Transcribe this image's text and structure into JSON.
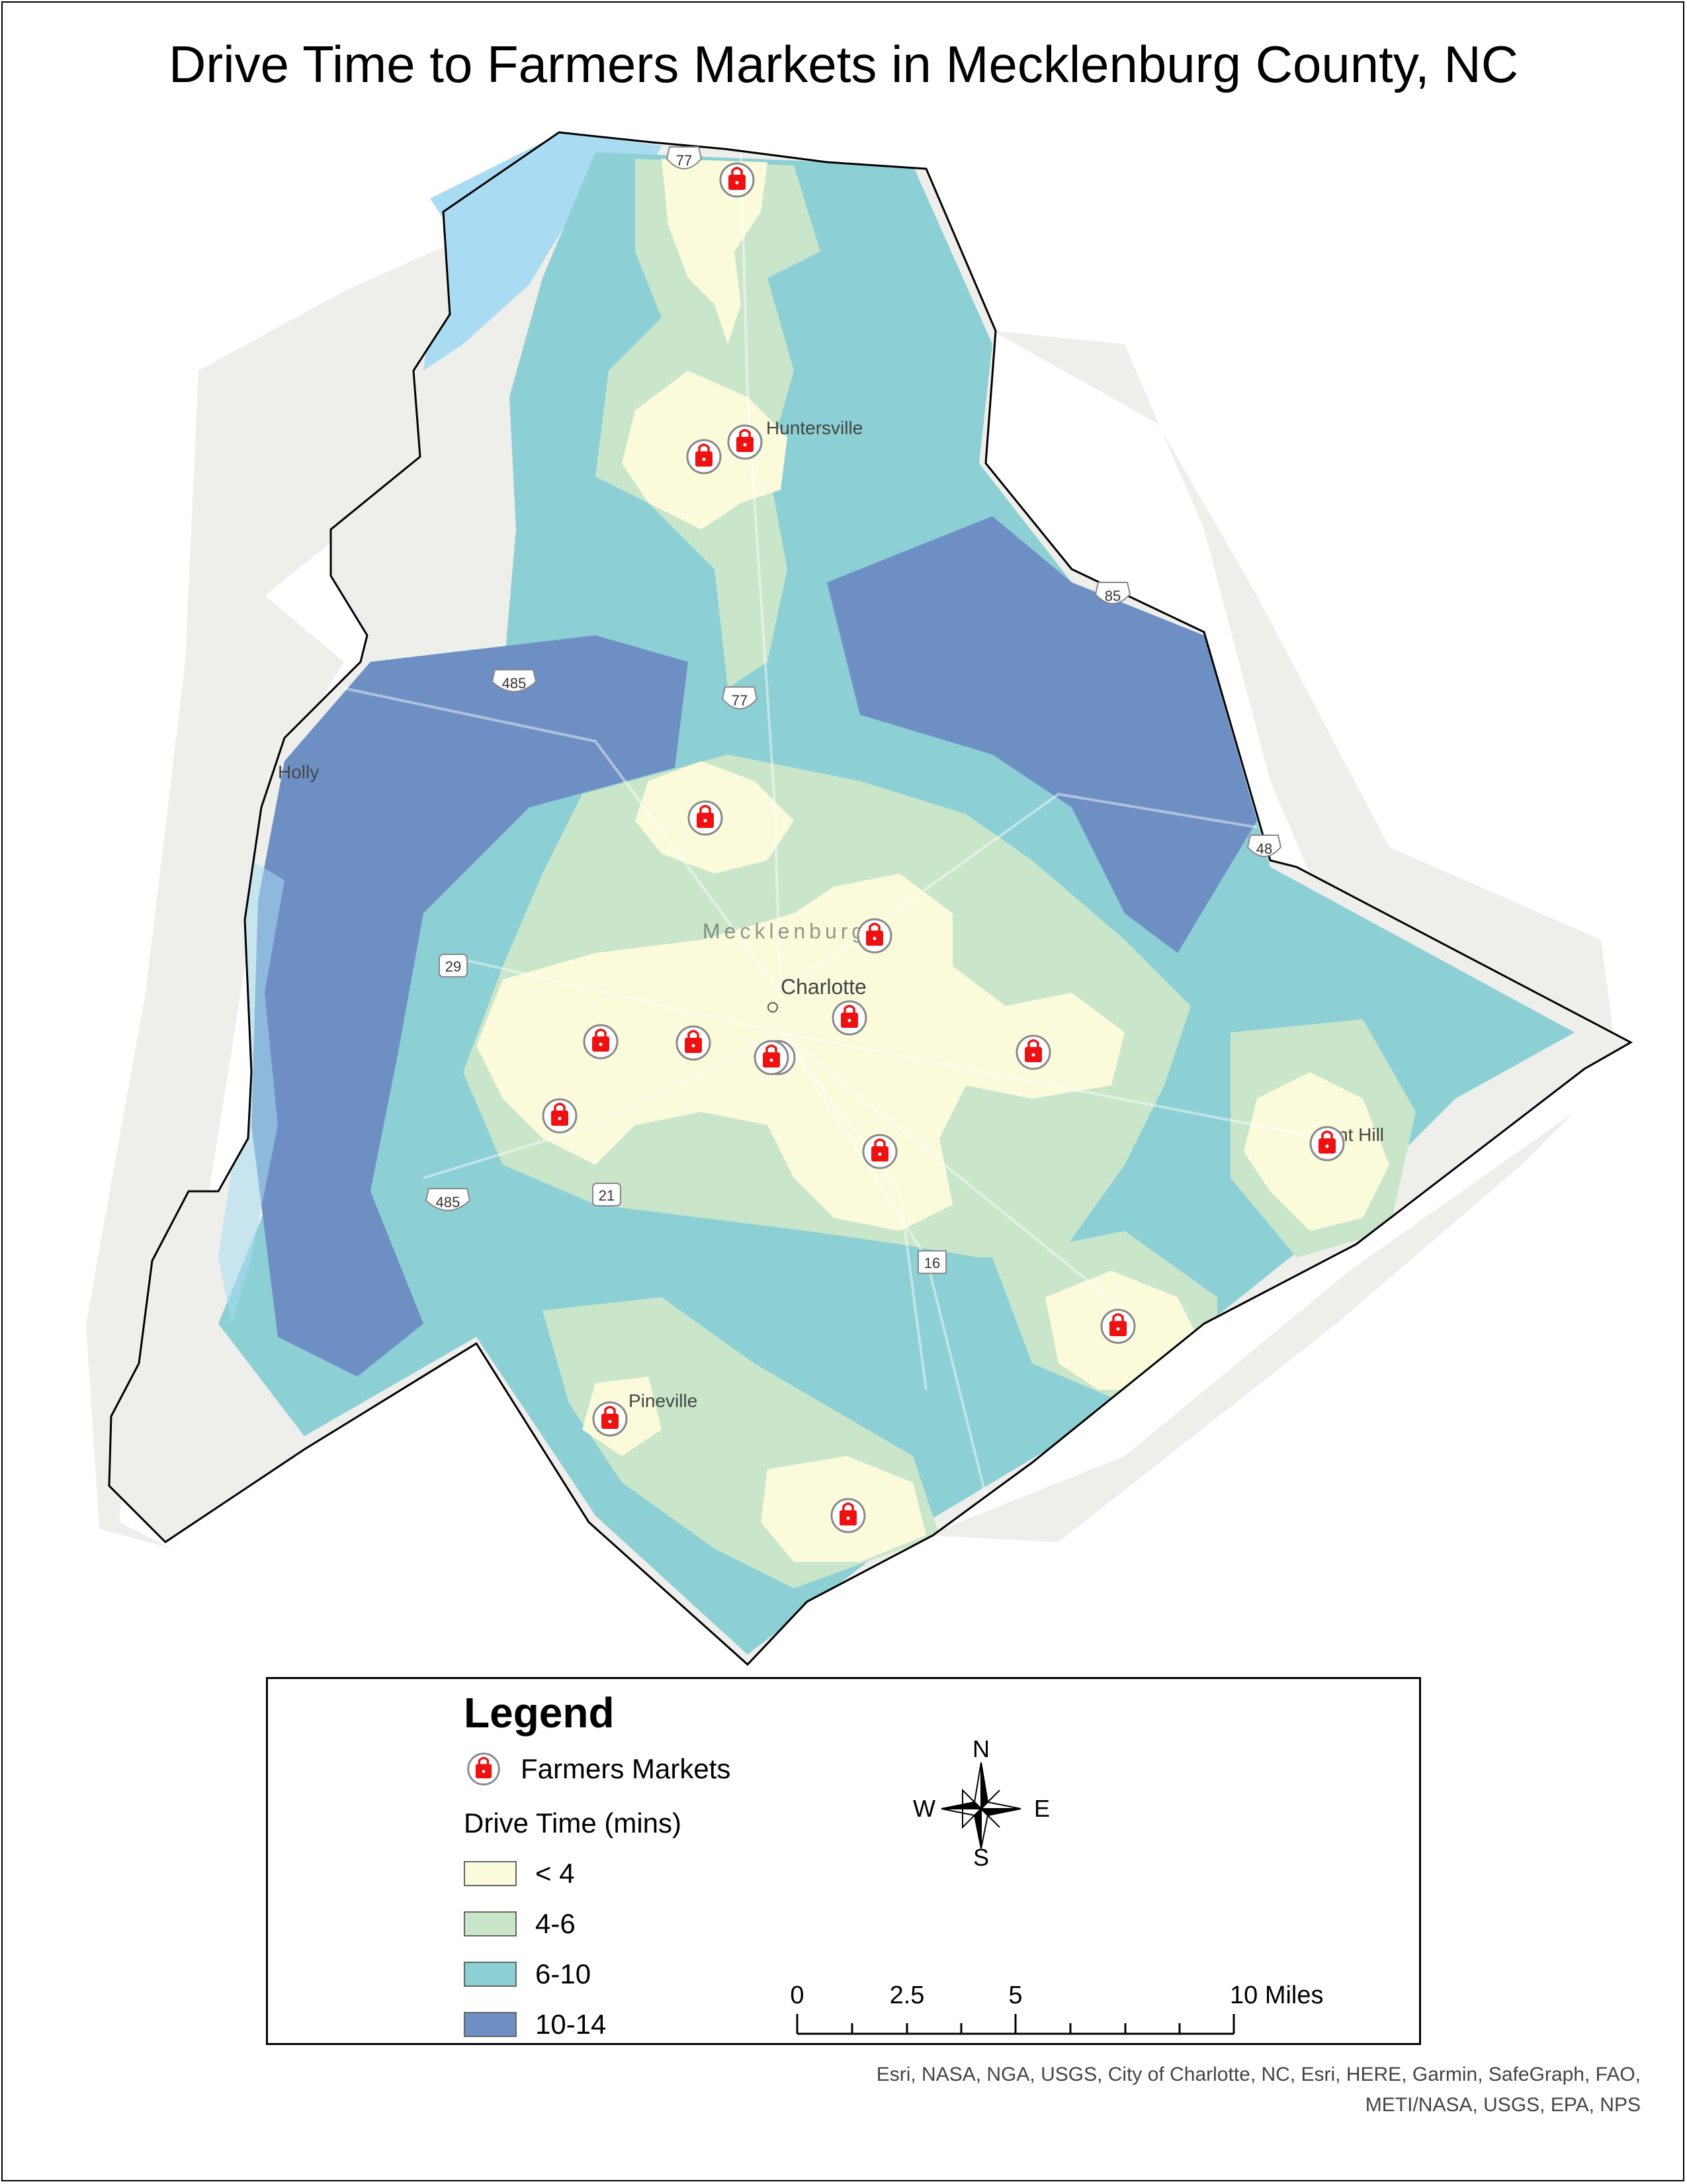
{
  "title": "Drive Time to Farmers Markets in Mecklenburg County, NC",
  "map": {
    "place_labels": {
      "huntersville": "Huntersville",
      "mecklenburg": "Mecklenburg",
      "charlotte": "Charlotte",
      "pineville": "Pineville",
      "mint_hill": "nt Hill",
      "holly": "Holly"
    },
    "shields": {
      "i77_north": "77",
      "i77_mid": "77",
      "i485_nw": "485",
      "i485_sw": "485",
      "i485_ne": "48",
      "i85": "85",
      "us29": "29",
      "us21": "21",
      "nc16": "16"
    },
    "colors": {
      "lt4": "#fbfbdc",
      "4to6": "#c9e6cb",
      "6to10": "#8ccfd4",
      "10to14": "#6e8fc4",
      "water": "#a9dcf3",
      "basemap": "#eeeeea",
      "market_red": "#ee1111",
      "boundary": "#000000"
    },
    "market_icon": "shopping-bag-icon",
    "market_count": 16
  },
  "legend": {
    "title": "Legend",
    "farmers_markets": "Farmers Markets",
    "drive_time_heading": "Drive Time (mins)",
    "classes": [
      {
        "label": "< 4",
        "color": "#fbfbdc"
      },
      {
        "label": "4-6",
        "color": "#c9e6cb"
      },
      {
        "label": "6-10",
        "color": "#8ccfd4"
      },
      {
        "label": "10-14",
        "color": "#6e8fc4"
      }
    ]
  },
  "compass": {
    "n": "N",
    "s": "S",
    "e": "E",
    "w": "W"
  },
  "scale_bar": {
    "labels": [
      "0",
      "2.5",
      "5",
      "10 Miles"
    ]
  },
  "credits": {
    "line1": "Esri, NASA, NGA, USGS, City of Charlotte, NC, Esri, HERE, Garmin, SafeGraph, FAO,",
    "line2": "METI/NASA, USGS, EPA, NPS"
  }
}
